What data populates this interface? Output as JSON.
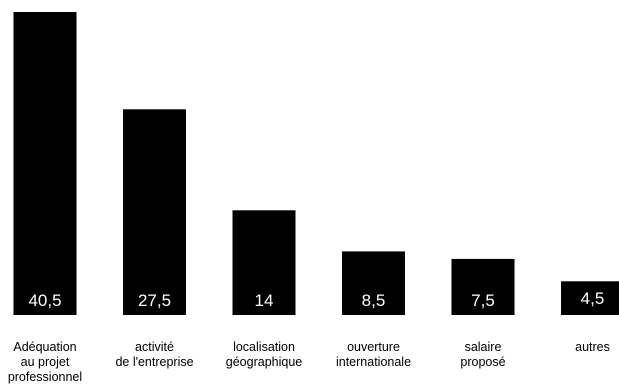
{
  "chart_data": {
    "type": "bar",
    "title": "",
    "xlabel": "",
    "ylabel": "",
    "categories": [
      [
        "Adéquation",
        "au  projet",
        "professionnel"
      ],
      [
        "activité",
        "de l'entreprise"
      ],
      [
        "localisation",
        "géographique"
      ],
      [
        "ouverture",
        "internationale"
      ],
      [
        "salaire",
        "proposé"
      ],
      [
        "autres"
      ]
    ],
    "values": [
      40.5,
      27.5,
      14,
      8.5,
      7.5,
      4.5
    ],
    "value_labels": [
      "40,5",
      "27,5",
      "14",
      "8,5",
      "7,5",
      "4,5"
    ],
    "ylim": [
      0,
      40.5
    ],
    "bar_color": "#000000",
    "value_label_color": "#ffffff",
    "grid": false,
    "legend": "none"
  }
}
